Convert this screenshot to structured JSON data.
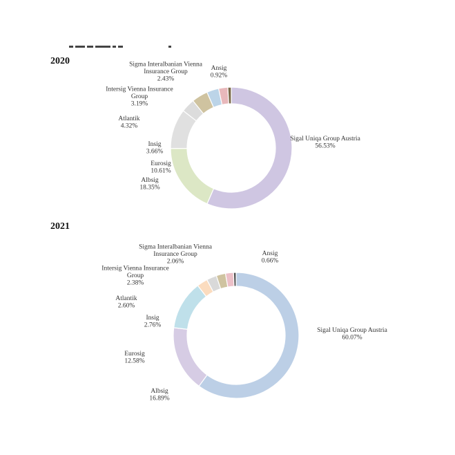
{
  "chart_data": [
    {
      "type": "pie",
      "title": "2020",
      "categories": [
        "Sigal Uniqa Group Austria",
        "Albsig",
        "Eurosig",
        "Insig",
        "Atlantik",
        "Intersig Vienna Insurance Group",
        "Sigma Interalbanian Vienna Insurance Group",
        "Ansig"
      ],
      "values": [
        56.53,
        18.35,
        10.61,
        3.66,
        4.32,
        3.19,
        2.43,
        0.92
      ],
      "value_labels": [
        "56.53%",
        "18.35%",
        "10.61%",
        "3.66%",
        "4.32%",
        "3.19%",
        "2.43%",
        "0.92%"
      ],
      "colors": [
        "#cfc6e2",
        "#dce7c5",
        "#e0e0e0",
        "#dcdcdc",
        "#cfc3a0",
        "#bcd4e8",
        "#e8b8bb",
        "#7a6a4a"
      ]
    },
    {
      "type": "pie",
      "title": "2021",
      "categories": [
        "Sigal Uniqa Group Austria",
        "Albsig",
        "Eurosig",
        "Insig",
        "Atlantik",
        "Intersig Vienna Insurance Group",
        "Sigma Interalbanian Vienna Insurance Group",
        "Ansig"
      ],
      "values": [
        60.07,
        16.89,
        12.58,
        2.76,
        2.6,
        2.38,
        2.06,
        0.66
      ],
      "value_labels": [
        "60.07%",
        "16.89%",
        "12.58%",
        "2.76%",
        "2.60%",
        "2.38%",
        "2.06%",
        "0.66%"
      ],
      "colors": [
        "#bccfe6",
        "#d6cce4",
        "#bfe0ea",
        "#fbdcbf",
        "#d9d9d9",
        "#cfc3a0",
        "#ecc0c8",
        "#505050"
      ]
    }
  ]
}
